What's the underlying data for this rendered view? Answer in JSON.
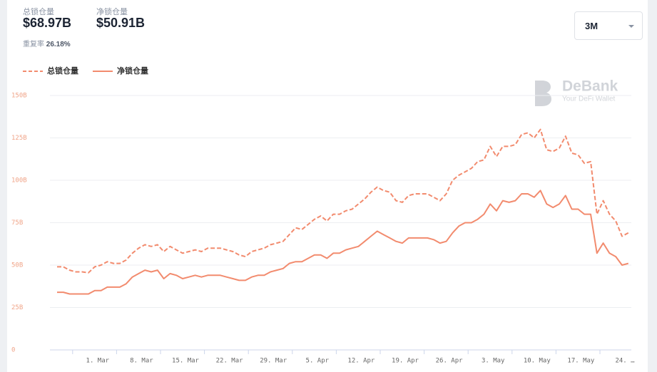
{
  "header": {
    "total_label": "总锁仓量",
    "total_value": "$68.97B",
    "net_label": "净锁仓量",
    "net_value": "$50.91B",
    "ratio_label": "重复率",
    "ratio_value": "26.18%",
    "range_select": "3M",
    "watermark_title": "DeBank",
    "watermark_subtitle": "Your DeFi Wallet"
  },
  "chart_data": {
    "type": "line",
    "grid": true,
    "legend": "top-left",
    "categories": [
      null,
      null,
      null,
      null,
      null,
      null,
      "1. Mar",
      null,
      null,
      null,
      null,
      null,
      null,
      "8. Mar",
      null,
      null,
      null,
      null,
      null,
      null,
      "15. Mar",
      null,
      null,
      null,
      null,
      null,
      null,
      "22. Mar",
      null,
      null,
      null,
      null,
      null,
      null,
      "29. Mar",
      null,
      null,
      null,
      null,
      null,
      null,
      "5. Apr",
      null,
      null,
      null,
      null,
      null,
      null,
      "12. Apr",
      null,
      null,
      null,
      null,
      null,
      null,
      "19. Apr",
      null,
      null,
      null,
      null,
      null,
      null,
      "26. Apr",
      null,
      null,
      null,
      null,
      null,
      null,
      "3. May",
      null,
      null,
      null,
      null,
      null,
      null,
      "10. May",
      null,
      null,
      null,
      null,
      null,
      null,
      "17. May",
      null,
      null,
      null,
      null,
      null,
      null,
      "24. …",
      null
    ],
    "ylim": [
      0,
      150
    ],
    "yticks": [
      0,
      {
        "value": 25,
        "label": "25B"
      },
      {
        "value": 50,
        "label": "50B"
      },
      {
        "value": 75,
        "label": "75B"
      },
      {
        "value": 100,
        "label": "100B"
      },
      {
        "value": 125,
        "label": "125B"
      },
      {
        "value": 150,
        "label": "150B"
      }
    ],
    "series": [
      {
        "name": "总锁仓量",
        "color": "#f28b6e",
        "dashed": true,
        "values": [
          49,
          49,
          47,
          46,
          46,
          45.5,
          49,
          50,
          52,
          51,
          51,
          53,
          57,
          60,
          62,
          61,
          62,
          58,
          61,
          59,
          57,
          58,
          59,
          58,
          60,
          60,
          60,
          59,
          58,
          56,
          55,
          58,
          59,
          60,
          62,
          63,
          64,
          68,
          72,
          71,
          74,
          77,
          79,
          76,
          80,
          80,
          82,
          83,
          86,
          89,
          93,
          96,
          94,
          93,
          88,
          87,
          91,
          92,
          92,
          92,
          90,
          88,
          92,
          100,
          103,
          105,
          107,
          111,
          112,
          120,
          114,
          120,
          120,
          121,
          127,
          128,
          125,
          130,
          118,
          117,
          119,
          126,
          116,
          115,
          110,
          111,
          80,
          88,
          80,
          76,
          67,
          69
        ]
      },
      {
        "name": "净锁仓量",
        "color": "#f28b6e",
        "dashed": false,
        "values": [
          34,
          34,
          33,
          33,
          33,
          33,
          35,
          35,
          37,
          37,
          37,
          39,
          43,
          45,
          47,
          46,
          47,
          42,
          45,
          44,
          42,
          43,
          44,
          43,
          44,
          44,
          44,
          43,
          42,
          41,
          41,
          43,
          44,
          44,
          46,
          47,
          48,
          51,
          52,
          52,
          54,
          56,
          56,
          54,
          57,
          57,
          59,
          60,
          61,
          64,
          67,
          70,
          68,
          66,
          64,
          63,
          66,
          66,
          66,
          66,
          65,
          63,
          64,
          69,
          73,
          75,
          75,
          77,
          80,
          86,
          82,
          88,
          87,
          88,
          92,
          92,
          90,
          94,
          86,
          84,
          86,
          91,
          83,
          83,
          80,
          80,
          57,
          63,
          57,
          55,
          50,
          51
        ]
      }
    ]
  }
}
